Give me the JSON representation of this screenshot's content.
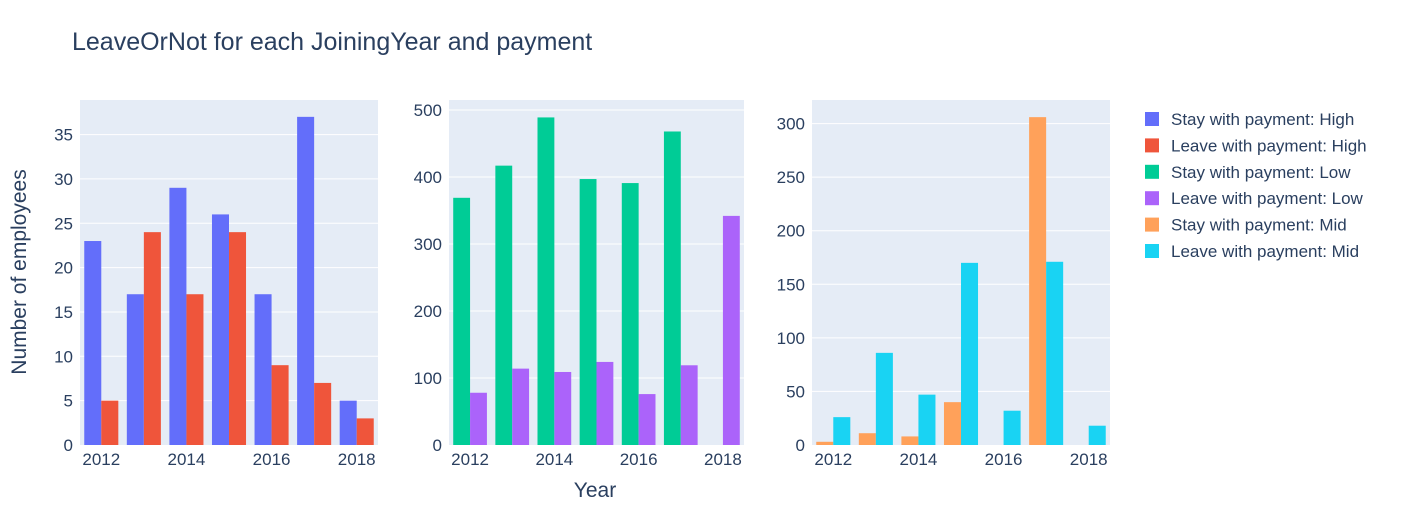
{
  "title": "LeaveOrNot for each JoiningYear and payment",
  "xlabel": "Year",
  "ylabel": "Number of employees",
  "colors": {
    "stay_high": "#636efa",
    "leave_high": "#ef553b",
    "stay_low": "#00cc96",
    "leave_low": "#ab63fa",
    "stay_mid": "#ffa15a",
    "leave_mid": "#19d3f3",
    "plot_bg": "#e5ecf6"
  },
  "legend": [
    {
      "label": "Stay with payment: High",
      "color": "#636efa"
    },
    {
      "label": "Leave with payment: High",
      "color": "#ef553b"
    },
    {
      "label": "Stay with payment: Low",
      "color": "#00cc96"
    },
    {
      "label": "Leave with payment: Low",
      "color": "#ab63fa"
    },
    {
      "label": "Stay with payment: Mid",
      "color": "#ffa15a"
    },
    {
      "label": "Leave with payment: Mid",
      "color": "#19d3f3"
    }
  ],
  "chart_data": [
    {
      "type": "bar",
      "x": [
        2012,
        2013,
        2014,
        2015,
        2016,
        2017,
        2018
      ],
      "xticks": [
        "2012",
        "2014",
        "2016",
        "2018"
      ],
      "xlim": [
        2011.5,
        2018.5
      ],
      "ylim": [
        0,
        38.9
      ],
      "yticks": [
        "0",
        "5",
        "10",
        "15",
        "20",
        "25",
        "30",
        "35"
      ],
      "series": [
        {
          "name": "Stay with payment: High",
          "color": "#636efa",
          "values": [
            23,
            17,
            29,
            26,
            17,
            37,
            5
          ]
        },
        {
          "name": "Leave with payment: High",
          "color": "#ef553b",
          "values": [
            5,
            24,
            17,
            24,
            9,
            7,
            3
          ]
        }
      ]
    },
    {
      "type": "bar",
      "x": [
        2012,
        2013,
        2014,
        2015,
        2016,
        2017,
        2018
      ],
      "xticks": [
        "2012",
        "2014",
        "2016",
        "2018"
      ],
      "xlim": [
        2011.5,
        2018.5
      ],
      "ylim": [
        0,
        515
      ],
      "yticks": [
        "0",
        "100",
        "200",
        "300",
        "400",
        "500"
      ],
      "series": [
        {
          "name": "Stay with payment: Low",
          "color": "#00cc96",
          "values": [
            369,
            417,
            489,
            397,
            391,
            468,
            0
          ]
        },
        {
          "name": "Leave with payment: Low",
          "color": "#ab63fa",
          "values": [
            78,
            114,
            109,
            124,
            76,
            119,
            342
          ]
        }
      ]
    },
    {
      "type": "bar",
      "x": [
        2012,
        2013,
        2014,
        2015,
        2016,
        2017,
        2018
      ],
      "xticks": [
        "2012",
        "2014",
        "2016",
        "2018"
      ],
      "xlim": [
        2011.5,
        2018.5
      ],
      "ylim": [
        0,
        322
      ],
      "yticks": [
        "0",
        "50",
        "100",
        "150",
        "200",
        "250",
        "300"
      ],
      "series": [
        {
          "name": "Stay with payment: Mid",
          "color": "#ffa15a",
          "values": [
            3,
            11,
            8,
            40,
            0,
            306,
            0
          ]
        },
        {
          "name": "Leave with payment: Mid",
          "color": "#19d3f3",
          "values": [
            26,
            86,
            47,
            170,
            32,
            171,
            18
          ]
        }
      ]
    }
  ]
}
